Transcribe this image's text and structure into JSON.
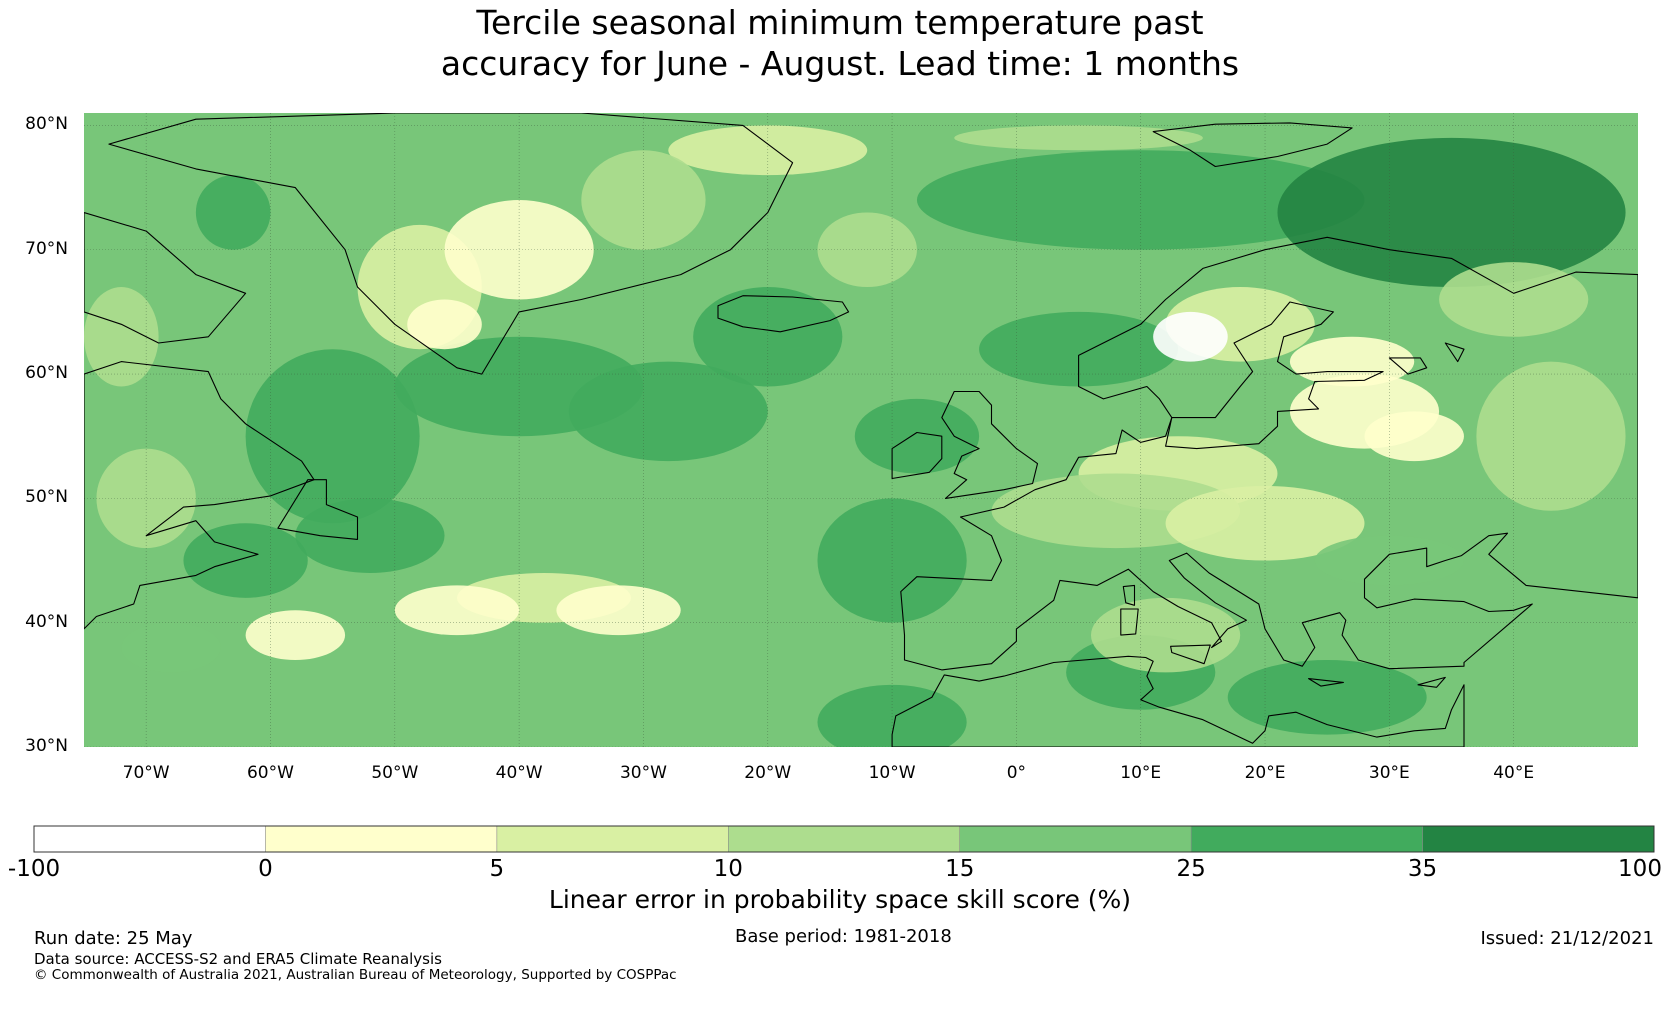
{
  "title": {
    "line1": "Tercile seasonal minimum temperature past",
    "line2": "accuracy for June - August. Lead time: 1 months"
  },
  "map": {
    "lon_range": [
      -75,
      50
    ],
    "lat_range": [
      30,
      81
    ],
    "lat_labels": [
      "80°N",
      "70°N",
      "60°N",
      "50°N",
      "40°N",
      "30°N"
    ],
    "lon_labels": [
      "70°W",
      "60°W",
      "50°W",
      "40°W",
      "30°W",
      "20°W",
      "10°W",
      "0°",
      "10°E",
      "20°E",
      "30°E",
      "40°E"
    ],
    "gridlines": true
  },
  "colorbar": {
    "ticks": [
      "-100",
      "0",
      "5",
      "10",
      "15",
      "25",
      "35",
      "100"
    ],
    "bins": [
      {
        "from": -100,
        "to": 0,
        "color": "#ffffff"
      },
      {
        "from": 0,
        "to": 5,
        "color": "#ffffcc"
      },
      {
        "from": 5,
        "to": 10,
        "color": "#d9f0a3"
      },
      {
        "from": 10,
        "to": 15,
        "color": "#addd8e"
      },
      {
        "from": 15,
        "to": 25,
        "color": "#78c679"
      },
      {
        "from": 25,
        "to": 35,
        "color": "#41ab5d"
      },
      {
        "from": 35,
        "to": 100,
        "color": "#238443"
      }
    ],
    "label": "Linear error in probability space skill score (%)"
  },
  "footer": {
    "run_date": "Run date: 25 May",
    "base_period": "Base period: 1981-2018",
    "issued": "Issued: 21/12/2021",
    "data_source": "Data source: ACCESS-S2 and ERA5 Climate Reanalysis",
    "copyright": "© Commonwealth of Australia 2021, Australian Bureau of Meteorology, Supported by COSPPac"
  }
}
